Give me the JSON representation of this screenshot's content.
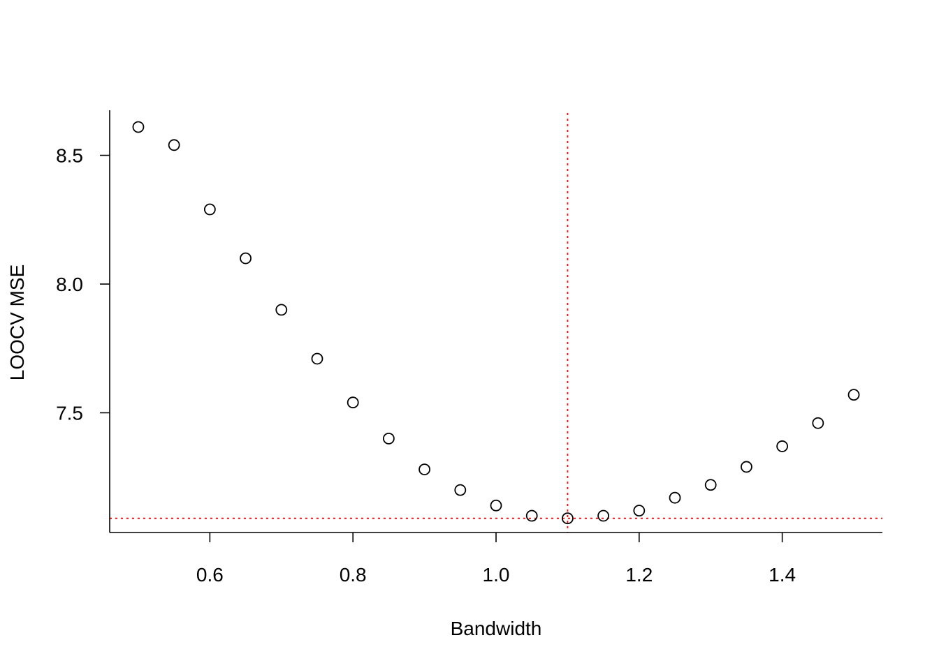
{
  "chart_data": {
    "type": "scatter",
    "title": "",
    "xlabel": "Bandwidth",
    "ylabel": "LOOCV MSE",
    "x": [
      0.5,
      0.55,
      0.6,
      0.65,
      0.7,
      0.75,
      0.8,
      0.85,
      0.9,
      0.95,
      1.0,
      1.05,
      1.1,
      1.15,
      1.2,
      1.25,
      1.3,
      1.35,
      1.4,
      1.45,
      1.5
    ],
    "y": [
      8.61,
      8.54,
      8.29,
      8.1,
      7.9,
      7.71,
      7.54,
      7.4,
      7.28,
      7.2,
      7.14,
      7.1,
      7.09,
      7.1,
      7.12,
      7.17,
      7.22,
      7.29,
      7.37,
      7.46,
      7.57
    ],
    "xlim": [
      0.46,
      1.54
    ],
    "ylim": [
      7.035,
      8.675
    ],
    "x_ticks": [
      0.6,
      0.8,
      1.0,
      1.2,
      1.4
    ],
    "x_tick_labels": [
      "0.6",
      "0.8",
      "1.0",
      "1.2",
      "1.4"
    ],
    "y_ticks": [
      7.5,
      8.0,
      8.5
    ],
    "y_tick_labels": [
      "7.5",
      "8.0",
      "8.5"
    ],
    "reference_lines": {
      "vline_x": 1.1,
      "hline_y": 7.09,
      "color": "#ff0000",
      "style": "dotted"
    },
    "point_color": "#000000",
    "grid": false,
    "legend": "none"
  }
}
